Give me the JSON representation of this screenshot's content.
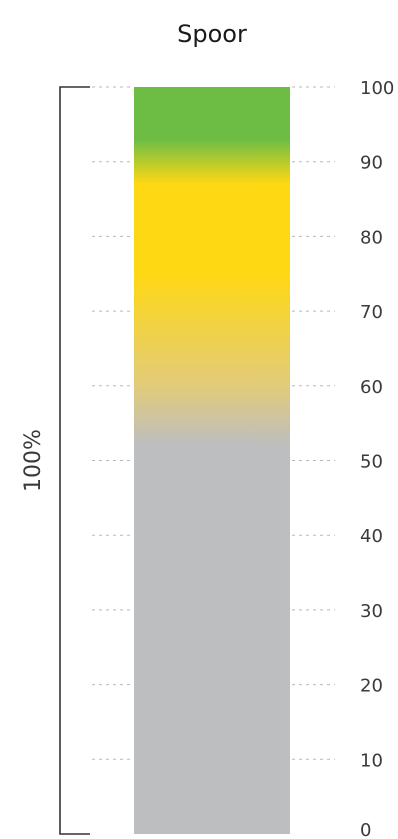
{
  "chart_data": {
    "type": "bar",
    "title": "Spoor",
    "yticks": [
      0,
      10,
      20,
      30,
      40,
      50,
      60,
      70,
      80,
      90,
      100
    ],
    "ylim": [
      0,
      100
    ],
    "grid": true,
    "bracket_label": "100%",
    "bands": [
      {
        "y": 100,
        "color": "#6dbd45"
      },
      {
        "y": 93,
        "color": "#6dbd45"
      },
      {
        "y": 87,
        "color": "#ffd814"
      },
      {
        "y": 75,
        "color": "#ffd814"
      },
      {
        "y": 60,
        "color": "#e2cb7a"
      },
      {
        "y": 52,
        "color": "#bdbebf"
      },
      {
        "y": 0,
        "color": "#bdbebf"
      }
    ]
  }
}
